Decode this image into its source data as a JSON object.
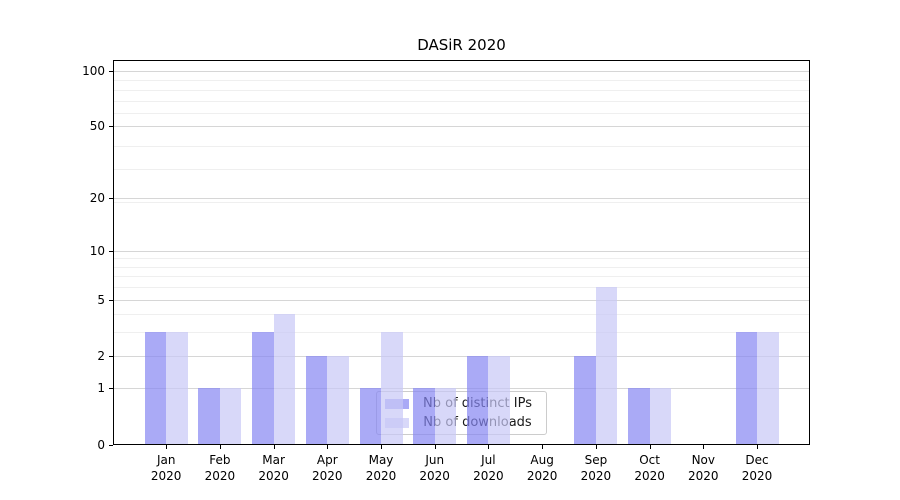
{
  "title": "DASiR 2020",
  "legend": {
    "items": [
      {
        "label": "Nb of distinct IPs",
        "color": "rgba(134,134,242,0.7)"
      },
      {
        "label": "Nb of downloads",
        "color": "rgba(199,199,247,0.7)"
      }
    ]
  },
  "chart_data": {
    "type": "bar",
    "title": "DASiR 2020",
    "categories": [
      {
        "month": "Jan",
        "year": "2020"
      },
      {
        "month": "Feb",
        "year": "2020"
      },
      {
        "month": "Mar",
        "year": "2020"
      },
      {
        "month": "Apr",
        "year": "2020"
      },
      {
        "month": "May",
        "year": "2020"
      },
      {
        "month": "Jun",
        "year": "2020"
      },
      {
        "month": "Jul",
        "year": "2020"
      },
      {
        "month": "Aug",
        "year": "2020"
      },
      {
        "month": "Sep",
        "year": "2020"
      },
      {
        "month": "Oct",
        "year": "2020"
      },
      {
        "month": "Nov",
        "year": "2020"
      },
      {
        "month": "Dec",
        "year": "2020"
      }
    ],
    "series": [
      {
        "name": "Nb of distinct IPs",
        "color": "rgba(134,134,242,0.7)",
        "values": [
          3,
          1,
          3,
          2,
          1,
          1,
          2,
          0,
          2,
          1,
          0,
          3
        ]
      },
      {
        "name": "Nb of downloads",
        "color": "rgba(199,199,247,0.7)",
        "values": [
          3,
          1,
          4,
          2,
          3,
          1,
          2,
          0,
          6,
          1,
          0,
          3
        ]
      }
    ],
    "yscale": "log10(1+x)",
    "yticks": [
      0,
      1,
      2,
      5,
      10,
      20,
      50,
      100
    ],
    "ylim": [
      0,
      114
    ],
    "xlabel": "",
    "ylabel": "",
    "grid": true,
    "legend_position": "inside-bottom-center"
  }
}
